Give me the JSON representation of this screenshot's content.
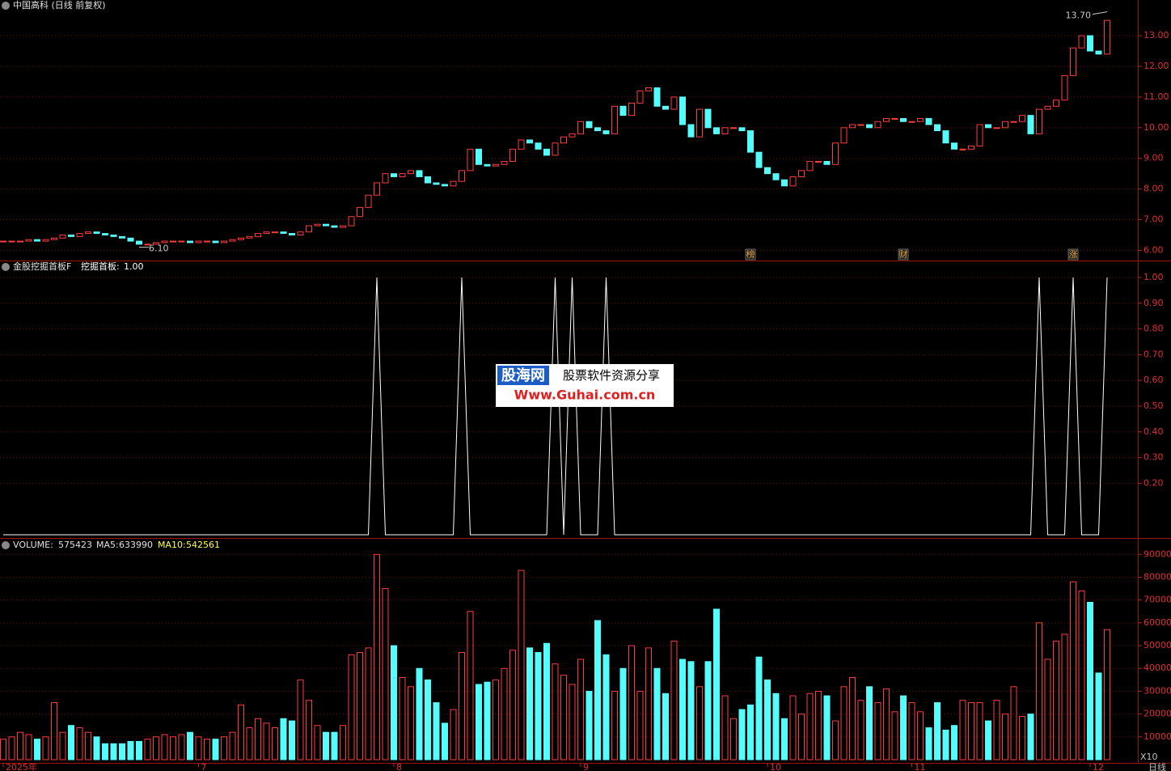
{
  "chart_data": {
    "type": "candlestick",
    "title": "中国高科 (日线 前复权)",
    "dates": [
      "2025年",
      null,
      null,
      null,
      null,
      null,
      null,
      null,
      null,
      null,
      null,
      null,
      null,
      null,
      null,
      null,
      null,
      null,
      null,
      null,
      null,
      null,
      null,
      "7",
      null,
      null,
      null,
      null,
      null,
      null,
      null,
      null,
      null,
      null,
      null,
      null,
      null,
      null,
      null,
      null,
      null,
      null,
      null,
      null,
      null,
      null,
      "8",
      null,
      null,
      null,
      null,
      null,
      null,
      null,
      null,
      null,
      null,
      null,
      null,
      null,
      null,
      null,
      null,
      null,
      null,
      null,
      null,
      null,
      "9",
      null,
      null,
      null,
      null,
      null,
      null,
      null,
      null,
      null,
      null,
      null,
      null,
      null,
      null,
      null,
      null,
      null,
      null,
      null,
      null,
      null,
      "10",
      null,
      null,
      null,
      null,
      null,
      null,
      null,
      null,
      null,
      null,
      null,
      null,
      null,
      null,
      null,
      null,
      "11",
      null,
      null,
      null,
      null,
      null,
      null,
      null,
      null,
      null,
      null,
      null,
      null,
      null,
      null,
      null,
      null,
      null,
      null,
      null,
      null,
      "12",
      null,
      null
    ],
    "close": [
      6.3,
      6.3,
      6.3,
      6.35,
      6.3,
      6.35,
      6.4,
      6.5,
      6.45,
      6.55,
      6.6,
      6.55,
      6.5,
      6.45,
      6.4,
      6.3,
      6.2,
      6.2,
      6.25,
      6.3,
      6.3,
      6.3,
      6.25,
      6.3,
      6.3,
      6.25,
      6.3,
      6.35,
      6.4,
      6.45,
      6.55,
      6.6,
      6.6,
      6.55,
      6.5,
      6.6,
      6.8,
      6.85,
      6.8,
      6.75,
      6.8,
      7.1,
      7.4,
      7.8,
      8.2,
      8.5,
      8.4,
      8.5,
      8.6,
      8.4,
      8.2,
      8.15,
      8.1,
      8.25,
      8.6,
      9.3,
      8.8,
      8.75,
      8.8,
      8.9,
      9.3,
      9.6,
      9.5,
      9.3,
      9.1,
      9.5,
      9.7,
      9.8,
      10.2,
      10.0,
      9.9,
      9.8,
      10.7,
      10.4,
      10.8,
      11.2,
      11.3,
      10.7,
      10.6,
      11.0,
      10.1,
      9.7,
      10.6,
      10.0,
      9.8,
      10.0,
      10.0,
      9.9,
      9.2,
      8.7,
      8.5,
      8.3,
      8.1,
      8.4,
      8.6,
      8.9,
      8.9,
      8.8,
      9.5,
      10.0,
      10.1,
      10.1,
      10.0,
      10.2,
      10.3,
      10.3,
      10.2,
      10.2,
      10.3,
      10.1,
      9.9,
      9.5,
      9.3,
      9.3,
      9.4,
      10.1,
      10.0,
      10.0,
      10.2,
      10.2,
      10.4,
      9.8,
      10.6,
      10.7,
      10.9,
      11.7,
      12.6,
      13.0,
      12.5,
      12.4,
      13.5
    ],
    "up_color": "#ff3c3c",
    "down_color": "#54fcfc",
    "ylim": [
      5.8,
      13.9
    ],
    "yticks": [
      {
        "value": 13,
        "label": "13.00"
      },
      {
        "value": 12,
        "label": "12.00"
      },
      {
        "value": 11,
        "label": "11.00"
      },
      {
        "value": 10,
        "label": "10.00"
      },
      {
        "value": 9,
        "label": "9.00"
      },
      {
        "value": 8,
        "label": "8.00"
      },
      {
        "value": 7,
        "label": "7.00"
      },
      {
        "value": 6,
        "label": "6.00"
      }
    ],
    "max_mark": {
      "value": 13.7,
      "label": "13.70"
    },
    "min_mark": {
      "value": 6.1,
      "label": "6.10"
    },
    "events": [
      null,
      null,
      null,
      null,
      null,
      null,
      null,
      null,
      null,
      null,
      null,
      null,
      null,
      null,
      null,
      null,
      null,
      null,
      null,
      null,
      null,
      null,
      null,
      null,
      null,
      null,
      null,
      null,
      null,
      null,
      null,
      null,
      null,
      null,
      null,
      null,
      null,
      null,
      null,
      null,
      null,
      null,
      null,
      null,
      null,
      null,
      null,
      null,
      null,
      null,
      null,
      null,
      null,
      null,
      null,
      null,
      null,
      null,
      null,
      null,
      null,
      null,
      null,
      null,
      null,
      null,
      null,
      null,
      null,
      null,
      null,
      null,
      null,
      null,
      null,
      null,
      null,
      null,
      null,
      null,
      null,
      null,
      null,
      null,
      null,
      null,
      null,
      null,
      "榜",
      null,
      null,
      null,
      null,
      null,
      null,
      null,
      null,
      null,
      null,
      null,
      null,
      null,
      null,
      null,
      null,
      null,
      "财",
      null,
      null,
      null,
      null,
      null,
      null,
      null,
      null,
      null,
      null,
      null,
      null,
      null,
      null,
      null,
      null,
      null,
      null,
      null,
      "涨",
      null,
      null,
      null,
      null
    ],
    "indicator": {
      "name": "金股挖掘首板F",
      "label": "挖掘首板:",
      "value": {
        "value": 1,
        "label": "1.00"
      },
      "color": "#ffffff",
      "values": [
        0,
        0,
        0,
        0,
        0,
        0,
        0,
        0,
        0,
        0,
        0,
        0,
        0,
        0,
        0,
        0,
        0,
        0,
        0,
        0,
        0,
        0,
        0,
        0,
        0,
        0,
        0,
        0,
        0,
        0,
        0,
        0,
        0,
        0,
        0,
        0,
        0,
        0,
        0,
        0,
        0,
        0,
        0,
        0,
        1,
        0,
        0,
        0,
        0,
        0,
        0,
        0,
        0,
        0,
        1,
        0,
        0,
        0,
        0,
        0,
        0,
        0,
        0,
        0,
        0,
        1,
        0,
        1,
        0,
        0,
        0,
        1,
        0,
        0,
        0,
        0,
        0,
        0,
        0,
        0,
        0,
        0,
        0,
        0,
        0,
        0,
        0,
        0,
        0,
        0,
        0,
        0,
        0,
        0,
        0,
        0,
        0,
        0,
        0,
        0,
        0,
        0,
        0,
        0,
        0,
        0,
        0,
        0,
        0,
        0,
        0,
        0,
        0,
        0,
        0,
        0,
        0,
        0,
        0,
        0,
        0,
        0,
        1,
        0,
        0,
        0,
        1,
        0,
        0,
        0,
        1
      ],
      "ylim": [
        0,
        1
      ],
      "yticks": [
        {
          "value": 1,
          "label": "1.00"
        },
        {
          "value": 0.9,
          "label": "0.90"
        },
        {
          "value": 0.8,
          "label": "0.80"
        },
        {
          "value": 0.7,
          "label": "0.70"
        },
        {
          "value": 0.6,
          "label": "0.60"
        },
        {
          "value": 0.5,
          "label": "0.50"
        },
        {
          "value": 0.4,
          "label": "0.40"
        },
        {
          "value": 0.3,
          "label": "0.30"
        },
        {
          "value": 0.2,
          "label": "0.20"
        }
      ]
    },
    "volume": {
      "label": "VOLUME:",
      "value": 575423,
      "ma5_label": "MA5:",
      "ma5": 633990,
      "ma10_label": "MA10:",
      "ma10": 542561,
      "unit_label": "X10",
      "values": [
        9000,
        10000,
        12000,
        11000,
        9000,
        10000,
        25000,
        12000,
        15000,
        14000,
        12000,
        10000,
        7000,
        7000,
        7000,
        8000,
        8000,
        9000,
        10000,
        11000,
        10000,
        11000,
        12000,
        10000,
        9000,
        9000,
        10000,
        12000,
        24000,
        14000,
        18000,
        16000,
        14000,
        18000,
        17000,
        35000,
        26000,
        15000,
        12000,
        12000,
        15000,
        46000,
        47000,
        49000,
        90000,
        75000,
        50000,
        36000,
        32000,
        40000,
        35000,
        25000,
        16000,
        22000,
        47000,
        65000,
        33000,
        34000,
        35000,
        40000,
        48000,
        83000,
        49000,
        47000,
        51000,
        42000,
        37000,
        33000,
        44000,
        30000,
        61000,
        46000,
        30000,
        40000,
        50000,
        30000,
        49000,
        40000,
        29000,
        52000,
        44000,
        43000,
        32000,
        43000,
        66000,
        28000,
        18000,
        22000,
        24000,
        45000,
        35000,
        29000,
        18000,
        28000,
        20000,
        29000,
        30000,
        28000,
        17000,
        32000,
        36000,
        26000,
        32000,
        25000,
        31000,
        21000,
        28000,
        25000,
        21000,
        14000,
        25000,
        13000,
        15000,
        26000,
        25000,
        25000,
        17000,
        26000,
        20000,
        32000,
        19000,
        20000,
        60000,
        44000,
        52000,
        55000,
        78000,
        74000,
        69000,
        38000,
        57000
      ],
      "ylim": [
        0,
        94000
      ],
      "yticks": [
        90000,
        80000,
        70000,
        60000,
        50000,
        40000,
        30000,
        20000,
        10000
      ]
    },
    "period_label": "日线",
    "watermark": {
      "brand": "股海网",
      "slogan": "股票软件资源分享",
      "url": "Www.Guhai.com.cn"
    }
  }
}
